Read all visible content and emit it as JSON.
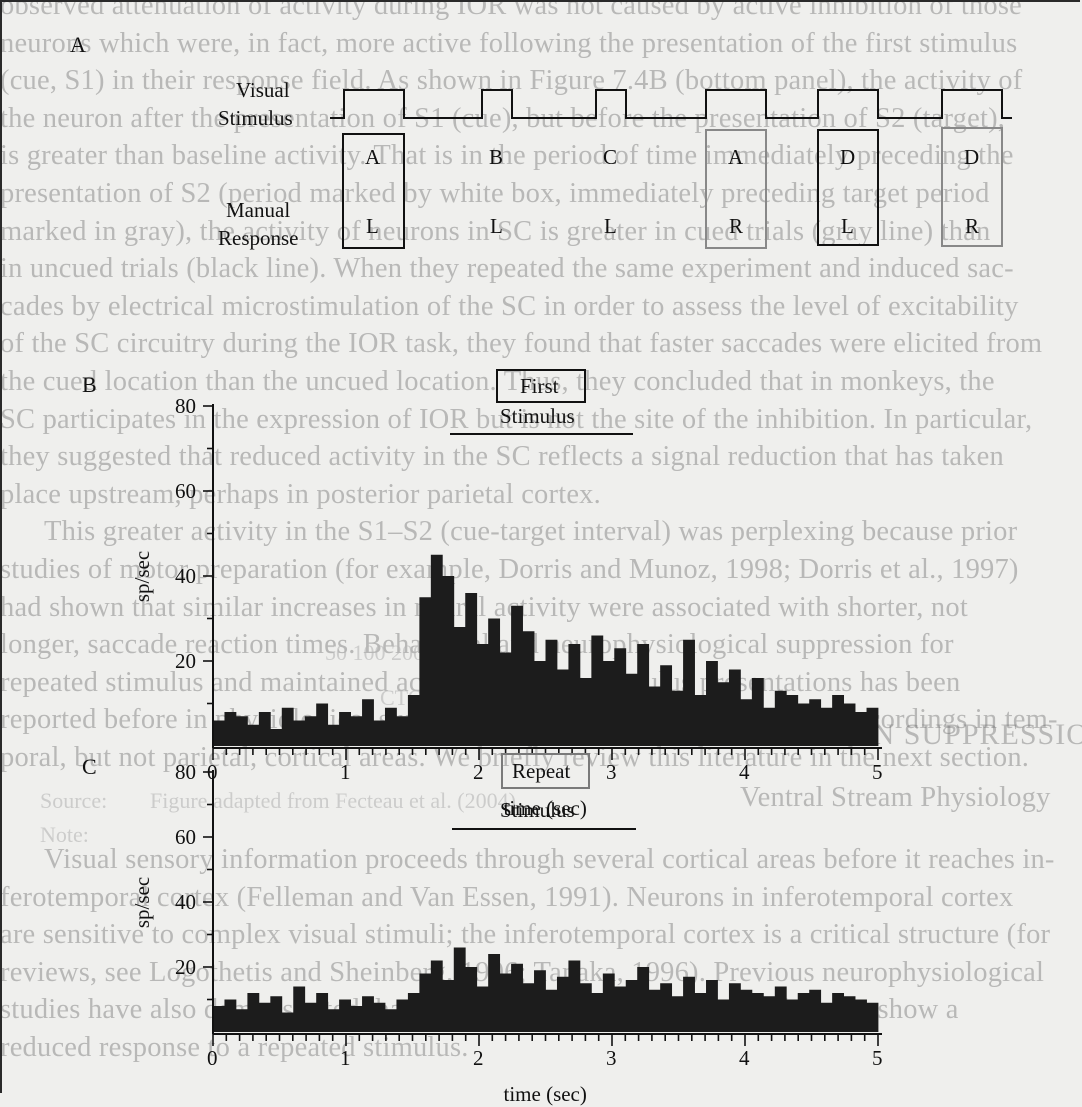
{
  "background_text": [
    "observed attenuation of activity during IOR was not caused by active inhibition of those",
    "neurons which were, in fact, more active following the presentation of the first stimulus",
    "(cue, S1) in their response field. As shown in Figure 7.4B (bottom panel), the activity of",
    "the neuron after the presentation of S1 (cue), but before the presentation of S2 (target),",
    "is greater than baseline activity. That is in the period of time immediately preceding the",
    "presentation of S2 (period marked by white box, immediately preceding target period",
    "marked in gray), the activity of neurons in SC is greater in cued trials (gray line) than",
    "in uncued trials (black line). When they repeated the same experiment and induced sac-",
    "cades by electrical microstimulation of the SC in order to assess the level of excitability",
    "of the SC circuitry during the IOR task, they found that faster saccades were elicited from",
    "the cued location than the uncued location. Thus, they concluded that in monkeys, the",
    "SC participates in the expression of IOR but is not the site of the inhibition. In particular,",
    "they suggested that reduced activity in the SC reflects a signal reduction that has taken",
    "place upstream, perhaps in posterior parietal cortex.",
    "This greater activity in the S1–S2 (cue-target interval) was perplexing because prior",
    "studies of motor preparation (for example, Dorris and Munoz, 1998; Dorris et al., 1997)",
    "had shown that similar increases in neural activity were associated with shorter, not",
    "longer, saccade reaction times. Behavioral and neurophysiological suppression for",
    "repeated stimulus and maintained activity between stimulus presentations has been",
    "reported before in physiological studies of cortical areas, primarily from recordings in tem-",
    "poral, but not parietal, cortical areas. We briefly review this literature in the next section.",
    "REPETITION SUPPRESSION",
    "Ventral Stream Physiology",
    "Visual sensory information proceeds through several cortical areas before it reaches in-",
    "ferotemporal cortex (Felleman and Van Essen, 1991). Neurons in inferotemporal cortex",
    "are sensitive to complex visual stimuli; the inferotemporal cortex is a critical structure (for",
    "reviews, see Logothetis and Sheinberg, 1996; Tanaka, 1996). Previous neurophysiological",
    "studies have also demonstrated that many neurons in inferotemporal cortex show a",
    "reduced response to a repeated stimulus."
  ],
  "ghost_text": {
    "source": "Source:",
    "source_text": "Figure adapted from Fecteau et al. (2004).",
    "note": "Note:",
    "cue_target": "CTOA (ms)",
    "ticks": "50  100  200  ..."
  },
  "panel_a": {
    "letter": "A",
    "visual_label_1": "Visual",
    "visual_label_2": "Stimulus",
    "manual_label_1": "Manual",
    "manual_label_2": "Response",
    "stimuli": [
      "A",
      "B",
      "C",
      "A",
      "D",
      "D"
    ],
    "responses": [
      "L",
      "L",
      "L",
      "R",
      "L",
      "R"
    ],
    "boxed": [
      true,
      false,
      false,
      true,
      true,
      true
    ],
    "box_style": [
      "black",
      "none",
      "none",
      "gray",
      "black",
      "gray"
    ]
  },
  "panel_b": {
    "letter": "B",
    "marker_label_1": "First",
    "marker_label_2": "Stimulus"
  },
  "panel_c": {
    "letter": "C",
    "marker_label_1": "Repeat",
    "marker_label_2": "Stimulus"
  },
  "chart_data": [
    {
      "type": "bar",
      "panel": "B",
      "title": "",
      "xlabel": "time (sec)",
      "ylabel": "sp/sec",
      "xlim": [
        0,
        5
      ],
      "ylim": [
        0,
        80
      ],
      "x_ticks": [
        0,
        1,
        2,
        3,
        4,
        5
      ],
      "y_ticks": [
        20,
        40,
        60,
        80
      ],
      "bin_width": 0.1,
      "stimulus_period": [
        1.8,
        3.0
      ],
      "values": [
        6,
        8,
        7,
        5,
        8,
        4,
        9,
        6,
        7,
        10,
        5,
        8,
        7,
        11,
        6,
        9,
        7,
        12,
        35,
        45,
        40,
        28,
        36,
        24,
        30,
        22,
        33,
        27,
        20,
        25,
        18,
        24,
        16,
        26,
        20,
        23,
        17,
        24,
        14,
        19,
        13,
        25,
        12,
        20,
        15,
        18,
        11,
        16,
        9,
        13,
        12,
        10,
        11,
        9,
        12,
        10,
        8,
        9
      ]
    },
    {
      "type": "bar",
      "panel": "C",
      "title": "",
      "xlabel": "time (sec)",
      "ylabel": "sp/sec",
      "xlim": [
        0,
        5
      ],
      "ylim": [
        0,
        80
      ],
      "x_ticks": [
        0,
        1,
        2,
        3,
        4,
        5
      ],
      "y_ticks": [
        20,
        40,
        60,
        80
      ],
      "bin_width": 0.1,
      "stimulus_period": [
        1.8,
        3.2
      ],
      "values": [
        8,
        10,
        7,
        12,
        9,
        11,
        6,
        14,
        9,
        12,
        7,
        10,
        8,
        11,
        9,
        7,
        10,
        12,
        18,
        22,
        16,
        26,
        20,
        14,
        24,
        18,
        21,
        15,
        19,
        13,
        17,
        22,
        15,
        12,
        18,
        14,
        16,
        20,
        13,
        15,
        11,
        17,
        12,
        16,
        10,
        15,
        13,
        12,
        11,
        14,
        10,
        12,
        13,
        9,
        12,
        11,
        10,
        9
      ]
    }
  ]
}
